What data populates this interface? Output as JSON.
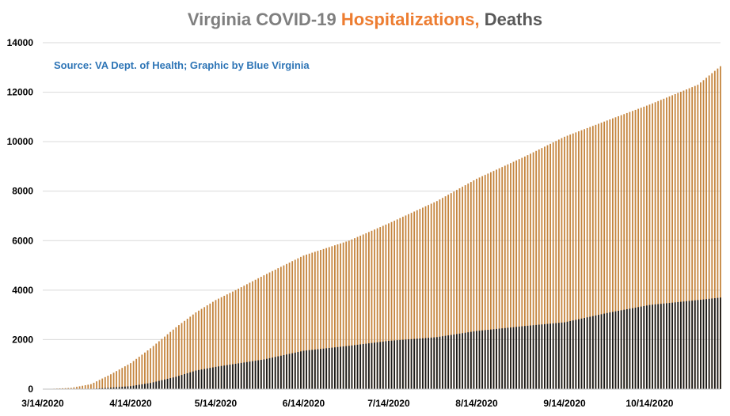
{
  "chart_data": {
    "type": "bar",
    "title_parts": [
      {
        "text": "Virginia COVID-19 ",
        "color": "#7f7f7f"
      },
      {
        "text": "Hospitalizations,",
        "color": "#ed7d31"
      },
      {
        "text": " Deaths",
        "color": "#595959"
      }
    ],
    "annotation": "Source: VA Dept. of Health; Graphic by Blue Virginia",
    "annotation_color": "#2e75b6",
    "x_start": "3/14/2020",
    "x_end": "11/8/2020",
    "x_tick_labels": [
      "3/14/2020",
      "4/14/2020",
      "5/14/2020",
      "6/14/2020",
      "7/14/2020",
      "8/14/2020",
      "9/14/2020",
      "10/14/2020"
    ],
    "ylim": [
      0,
      14000
    ],
    "y_ticks": [
      0,
      2000,
      4000,
      6000,
      8000,
      10000,
      12000,
      14000
    ],
    "grid": true,
    "series": [
      {
        "key": "hospitalizations",
        "color": "#c5853e",
        "points": [
          [
            "3/14/2020",
            0
          ],
          [
            "3/24/2020",
            50
          ],
          [
            "3/31/2020",
            200
          ],
          [
            "4/7/2020",
            600
          ],
          [
            "4/14/2020",
            1050
          ],
          [
            "4/21/2020",
            1650
          ],
          [
            "4/30/2020",
            2500
          ],
          [
            "5/7/2020",
            3100
          ],
          [
            "5/14/2020",
            3600
          ],
          [
            "5/21/2020",
            4000
          ],
          [
            "5/31/2020",
            4600
          ],
          [
            "6/14/2020",
            5400
          ],
          [
            "6/30/2020",
            6000
          ],
          [
            "7/14/2020",
            6700
          ],
          [
            "7/31/2020",
            7600
          ],
          [
            "8/14/2020",
            8500
          ],
          [
            "8/31/2020",
            9400
          ],
          [
            "9/14/2020",
            10200
          ],
          [
            "9/30/2020",
            10900
          ],
          [
            "10/14/2020",
            11500
          ],
          [
            "10/31/2020",
            12300
          ],
          [
            "11/8/2020",
            13050
          ]
        ]
      },
      {
        "key": "deaths",
        "color": "#1a1a1a",
        "points": [
          [
            "3/14/2020",
            0
          ],
          [
            "3/31/2020",
            10
          ],
          [
            "4/7/2020",
            60
          ],
          [
            "4/14/2020",
            120
          ],
          [
            "4/21/2020",
            250
          ],
          [
            "4/30/2020",
            500
          ],
          [
            "5/7/2020",
            750
          ],
          [
            "5/14/2020",
            900
          ],
          [
            "5/31/2020",
            1200
          ],
          [
            "6/14/2020",
            1550
          ],
          [
            "6/30/2020",
            1750
          ],
          [
            "7/14/2020",
            1950
          ],
          [
            "7/31/2020",
            2100
          ],
          [
            "8/14/2020",
            2350
          ],
          [
            "8/31/2020",
            2550
          ],
          [
            "9/14/2020",
            2700
          ],
          [
            "9/30/2020",
            3100
          ],
          [
            "10/14/2020",
            3400
          ],
          [
            "10/31/2020",
            3600
          ],
          [
            "11/8/2020",
            3700
          ]
        ]
      }
    ]
  }
}
